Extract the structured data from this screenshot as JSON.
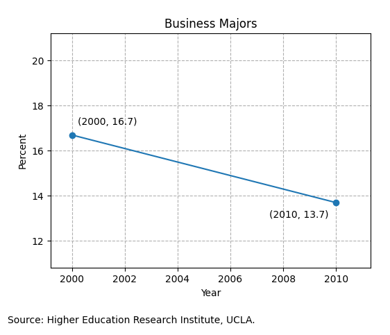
{
  "chart_data": {
    "type": "line",
    "title": "Business Majors",
    "xlabel": "Year",
    "ylabel": "Percent",
    "x": [
      2000,
      2010
    ],
    "series": [
      {
        "name": "Business Majors",
        "values": [
          16.7,
          13.7
        ],
        "marker": "o"
      }
    ],
    "annotations": [
      "(2000, 16.7)",
      "(2010, 13.7)"
    ],
    "xlim": [
      1999.2,
      2011.3
    ],
    "xticks": [
      2000,
      2002,
      2004,
      2006,
      2008,
      2010
    ],
    "ylim": [
      10.8,
      21.2
    ],
    "yticks": [
      12,
      14,
      16,
      18,
      20
    ],
    "grid": true,
    "source": "Source: Higher Education Research Institute, UCLA."
  }
}
